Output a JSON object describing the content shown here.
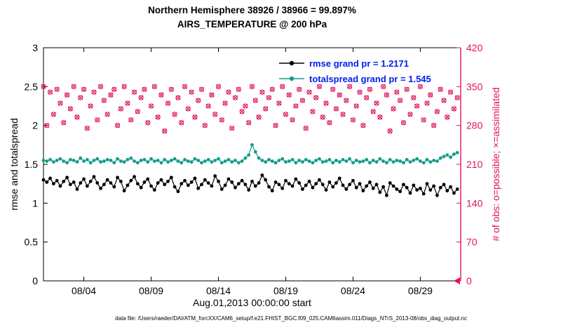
{
  "title": {
    "line1": "Northern Hemisphere 38926 / 38966 = 99.897%",
    "line2": "AIRS_TEMPERATURE @ 200 hPa"
  },
  "axes": {
    "left": {
      "label": "rmse and totalspread",
      "range": [
        0,
        3
      ],
      "tick_values": [
        0,
        0.5,
        1,
        1.5,
        2,
        2.5,
        3
      ]
    },
    "right": {
      "label": "# of obs: o=possible; ×=assimilated",
      "range": [
        0,
        420
      ],
      "tick_values": [
        0,
        70,
        140,
        210,
        280,
        350,
        420
      ],
      "color": "#e0115f"
    },
    "x": {
      "label": "Aug.01,2013 00:00:00 start",
      "range_days": [
        1,
        32
      ],
      "ticks": [
        {
          "day": 4,
          "label": "08/04"
        },
        {
          "day": 9,
          "label": "08/09"
        },
        {
          "day": 14,
          "label": "08/14"
        },
        {
          "day": 19,
          "label": "08/19"
        },
        {
          "day": 24,
          "label": "08/24"
        },
        {
          "day": 29,
          "label": "08/29"
        }
      ]
    }
  },
  "legend": {
    "text_color": "#0020ee",
    "entries": [
      {
        "label": "rmse grand pr = 1.2171",
        "color": "#000000"
      },
      {
        "label": "totalspread grand pr = 1.545",
        "color": "#139c8a"
      }
    ]
  },
  "caption": "data file: /Users/raeder/DAI/ATM_forcXX/CAM6_setup/f.e21.FHIST_BGC.f09_025.CAM6assim.011/Diags_NTrS_2013-08/obs_diag_output.nc",
  "colors": {
    "rmse": "#000000",
    "totalspread": "#139c8a",
    "obs": "#e0115f",
    "axis": "#000000"
  },
  "chart_data": {
    "type": "line",
    "title": "Northern Hemisphere 38926 / 38966 = 99.897% — AIRS_TEMPERATURE @ 200 hPa",
    "xlabel": "Aug.01,2013 00:00:00 start",
    "ylabel_left": "rmse and totalspread",
    "ylabel_right": "# of obs: o=possible; ×=assimilated",
    "ylim_left": [
      0,
      3
    ],
    "ylim_right": [
      0,
      420
    ],
    "x_start_day": 1,
    "x_step_days": 0.25,
    "x_axis_days": [
      1,
      32
    ],
    "grid": false,
    "legend_position": "top-right-inside",
    "series": [
      {
        "name": "rmse",
        "axis": "left",
        "color": "#000000",
        "marker": "filled-circle",
        "values": [
          1.3,
          1.27,
          1.32,
          1.25,
          1.29,
          1.22,
          1.28,
          1.33,
          1.24,
          1.27,
          1.18,
          1.26,
          1.31,
          1.22,
          1.28,
          1.34,
          1.26,
          1.19,
          1.24,
          1.3,
          1.26,
          1.21,
          1.33,
          1.28,
          1.16,
          1.23,
          1.29,
          1.34,
          1.25,
          1.2,
          1.27,
          1.31,
          1.22,
          1.17,
          1.26,
          1.3,
          1.24,
          1.28,
          1.33,
          1.21,
          1.15,
          1.25,
          1.29,
          1.23,
          1.27,
          1.32,
          1.19,
          1.24,
          1.3,
          1.26,
          1.22,
          1.35,
          1.28,
          1.18,
          1.23,
          1.31,
          1.27,
          1.2,
          1.25,
          1.29,
          1.24,
          1.17,
          1.28,
          1.22,
          1.26,
          1.36,
          1.3,
          1.21,
          1.16,
          1.27,
          1.24,
          1.19,
          1.29,
          1.25,
          1.22,
          1.31,
          1.26,
          1.18,
          1.23,
          1.28,
          1.2,
          1.25,
          1.3,
          1.24,
          1.17,
          1.27,
          1.21,
          1.26,
          1.32,
          1.23,
          1.18,
          1.24,
          1.29,
          1.2,
          1.25,
          1.16,
          1.22,
          1.27,
          1.19,
          1.24,
          1.14,
          1.21,
          1.1,
          1.26,
          1.22,
          1.18,
          1.15,
          1.24,
          1.2,
          1.13,
          1.23,
          1.17,
          1.19,
          1.12,
          1.25,
          1.17,
          1.22,
          1.1,
          1.2,
          1.24,
          1.16,
          1.21,
          1.13,
          1.18
        ]
      },
      {
        "name": "totalspread",
        "axis": "left",
        "color": "#139c8a",
        "marker": "filled-circle",
        "values": [
          1.55,
          1.54,
          1.56,
          1.53,
          1.55,
          1.57,
          1.54,
          1.52,
          1.56,
          1.55,
          1.53,
          1.58,
          1.54,
          1.56,
          1.52,
          1.55,
          1.57,
          1.53,
          1.54,
          1.56,
          1.55,
          1.52,
          1.57,
          1.54,
          1.53,
          1.56,
          1.58,
          1.54,
          1.52,
          1.55,
          1.56,
          1.53,
          1.57,
          1.54,
          1.55,
          1.52,
          1.56,
          1.53,
          1.55,
          1.57,
          1.54,
          1.52,
          1.56,
          1.54,
          1.53,
          1.57,
          1.55,
          1.52,
          1.54,
          1.56,
          1.53,
          1.55,
          1.57,
          1.52,
          1.54,
          1.56,
          1.53,
          1.55,
          1.52,
          1.54,
          1.58,
          1.62,
          1.75,
          1.66,
          1.58,
          1.55,
          1.53,
          1.56,
          1.54,
          1.52,
          1.55,
          1.57,
          1.53,
          1.54,
          1.56,
          1.52,
          1.55,
          1.53,
          1.56,
          1.54,
          1.52,
          1.55,
          1.57,
          1.53,
          1.54,
          1.56,
          1.52,
          1.55,
          1.53,
          1.56,
          1.54,
          1.57,
          1.52,
          1.55,
          1.53,
          1.54,
          1.56,
          1.52,
          1.55,
          1.53,
          1.57,
          1.54,
          1.52,
          1.56,
          1.53,
          1.55,
          1.54,
          1.52,
          1.56,
          1.53,
          1.55,
          1.57,
          1.54,
          1.52,
          1.56,
          1.53,
          1.55,
          1.54,
          1.58,
          1.6,
          1.62,
          1.59,
          1.63,
          1.65
        ]
      },
      {
        "name": "obs count (o=possible, x=assimilated)",
        "axis": "right",
        "color": "#e0115f",
        "marker": "o-and-x",
        "values": [
          350,
          280,
          340,
          300,
          345,
          320,
          285,
          335,
          310,
          350,
          295,
          330,
          345,
          275,
          315,
          340,
          290,
          350,
          325,
          300,
          335,
          345,
          280,
          310,
          350,
          320,
          290,
          340,
          305,
          330,
          345,
          285,
          315,
          350,
          295,
          335,
          270,
          320,
          345,
          300,
          330,
          285,
          350,
          310,
          340,
          295,
          325,
          345,
          280,
          315,
          335,
          300,
          350,
          290,
          320,
          340,
          275,
          330,
          345,
          305,
          315,
          285,
          350,
          325,
          295,
          340,
          310,
          330,
          345,
          280,
          320,
          350,
          300,
          335,
          290,
          315,
          345,
          325,
          275,
          340,
          305,
          330,
          350,
          295,
          320,
          285,
          345,
          310,
          335,
          300,
          325,
          350,
          290,
          315,
          340,
          280,
          330,
          345,
          305,
          320,
          295,
          350,
          335,
          270,
          310,
          340,
          325,
          285,
          345,
          300,
          330,
          315,
          350,
          290,
          320,
          335,
          280,
          305,
          345,
          325,
          295,
          340,
          310,
          330
        ]
      }
    ]
  }
}
